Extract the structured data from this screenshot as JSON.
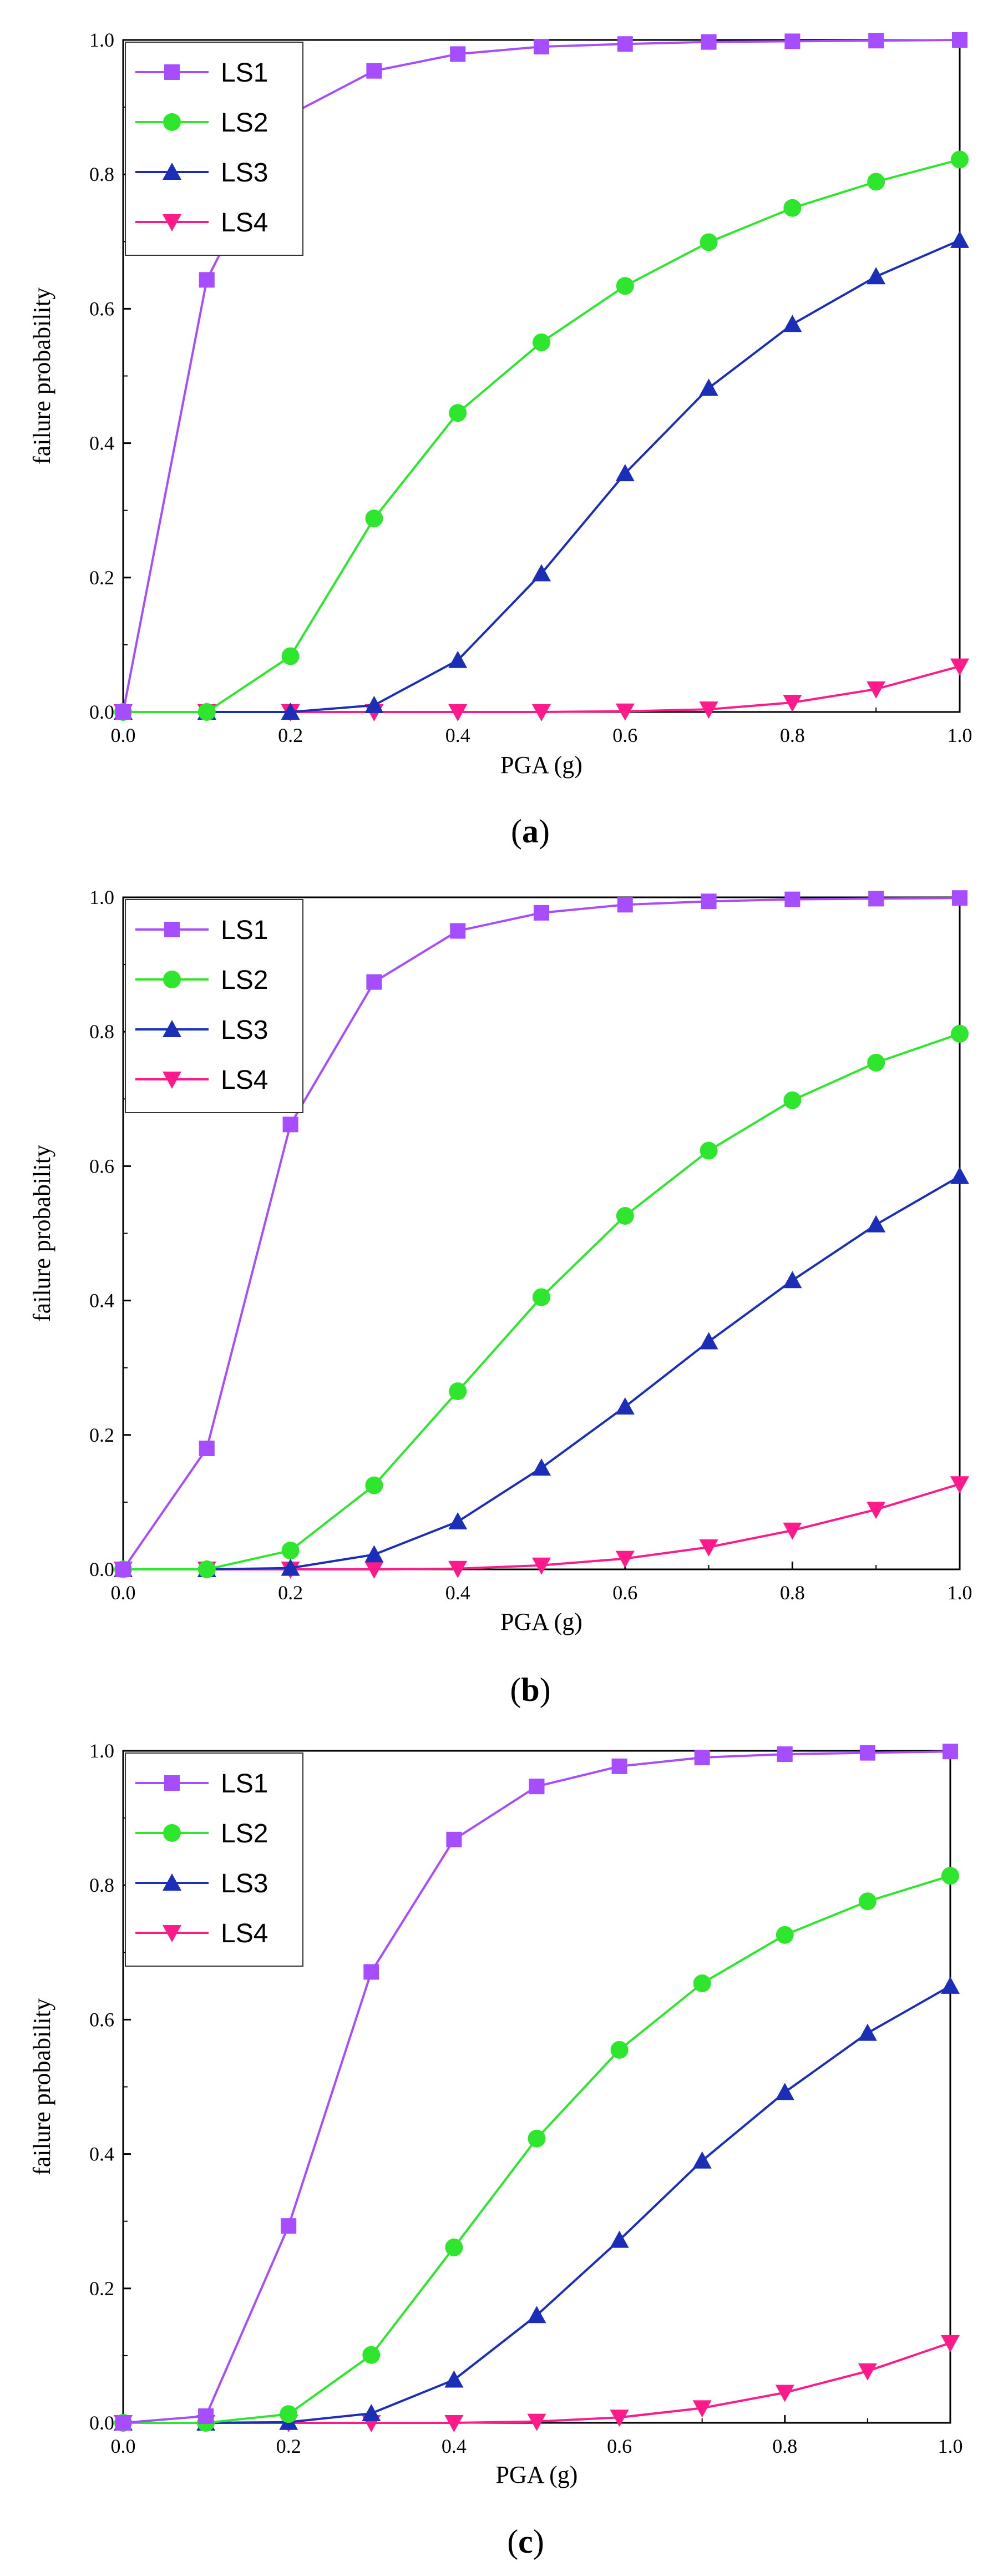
{
  "figure": {
    "panels": [
      {
        "caption_open": "(",
        "caption_letter": "a",
        "caption_close": ")"
      },
      {
        "caption_open": "(",
        "caption_letter": "b",
        "caption_close": ")"
      },
      {
        "caption_open": "(",
        "caption_letter": "c",
        "caption_close": ")"
      }
    ]
  },
  "chart_data": [
    {
      "type": "line",
      "panel": "a",
      "xlabel": "PGA (g)",
      "ylabel": "failure probability",
      "xlim": [
        0,
        1
      ],
      "ylim": [
        0,
        1
      ],
      "x_ticks": [
        "0.0",
        "0.2",
        "0.4",
        "0.6",
        "0.8",
        "1.0"
      ],
      "y_ticks": [
        "0.0",
        "0.2",
        "0.4",
        "0.6",
        "0.8",
        "1.0"
      ],
      "x": [
        0.0,
        0.1,
        0.2,
        0.3,
        0.4,
        0.5,
        0.6,
        0.7,
        0.8,
        0.9,
        1.0
      ],
      "legend_position": "top-left",
      "series": [
        {
          "name": "LS1",
          "color": "#a64dff",
          "marker": "square",
          "values": [
            0.0,
            0.643,
            0.889,
            0.954,
            0.979,
            0.99,
            0.994,
            0.997,
            0.998,
            0.999,
            1.0
          ]
        },
        {
          "name": "LS2",
          "color": "#2ee62e",
          "marker": "circle",
          "values": [
            0.0,
            0.0,
            0.083,
            0.288,
            0.445,
            0.55,
            0.634,
            0.699,
            0.75,
            0.789,
            0.822
          ]
        },
        {
          "name": "LS3",
          "color": "#1a2eb8",
          "marker": "triangle-up",
          "values": [
            0.0,
            0.0,
            0.0,
            0.01,
            0.077,
            0.206,
            0.355,
            0.482,
            0.577,
            0.648,
            0.702
          ]
        },
        {
          "name": "LS4",
          "color": "#ff1a8c",
          "marker": "triangle-down",
          "values": [
            0.0,
            0.0,
            0.0,
            0.0,
            0.0,
            0.0,
            0.001,
            0.004,
            0.014,
            0.034,
            0.068
          ]
        }
      ]
    },
    {
      "type": "line",
      "panel": "b",
      "xlabel": "PGA (g)",
      "ylabel": "failure probability",
      "xlim": [
        0,
        1
      ],
      "ylim": [
        0,
        1
      ],
      "x_ticks": [
        "0.0",
        "0.2",
        "0.4",
        "0.6",
        "0.8",
        "1.0"
      ],
      "y_ticks": [
        "0.0",
        "0.2",
        "0.4",
        "0.6",
        "0.8",
        "1.0"
      ],
      "x": [
        0.0,
        0.1,
        0.2,
        0.3,
        0.4,
        0.5,
        0.6,
        0.7,
        0.8,
        0.9,
        1.0
      ],
      "legend_position": "top-left",
      "series": [
        {
          "name": "LS1",
          "color": "#a64dff",
          "marker": "square",
          "values": [
            0.0,
            0.18,
            0.662,
            0.874,
            0.95,
            0.977,
            0.989,
            0.994,
            0.997,
            0.998,
            0.999
          ]
        },
        {
          "name": "LS2",
          "color": "#2ee62e",
          "marker": "circle",
          "values": [
            0.0,
            0.0,
            0.028,
            0.125,
            0.265,
            0.405,
            0.526,
            0.623,
            0.698,
            0.754,
            0.797
          ]
        },
        {
          "name": "LS3",
          "color": "#1a2eb8",
          "marker": "triangle-up",
          "values": [
            0.0,
            0.0,
            0.002,
            0.022,
            0.071,
            0.151,
            0.242,
            0.339,
            0.43,
            0.513,
            0.585
          ]
        },
        {
          "name": "LS4",
          "color": "#ff1a8c",
          "marker": "triangle-down",
          "values": [
            0.0,
            0.0,
            0.0,
            0.0,
            0.001,
            0.006,
            0.016,
            0.033,
            0.058,
            0.089,
            0.127
          ]
        }
      ]
    },
    {
      "type": "line",
      "panel": "c",
      "xlabel": "PGA (g)",
      "ylabel": "failure probability",
      "xlim": [
        0,
        1
      ],
      "ylim": [
        0,
        1
      ],
      "x_ticks": [
        "0.0",
        "0.2",
        "0.4",
        "0.6",
        "0.8",
        "1.0"
      ],
      "y_ticks": [
        "0.0",
        "0.2",
        "0.4",
        "0.6",
        "0.8",
        "1.0"
      ],
      "x": [
        0.0,
        0.1,
        0.2,
        0.3,
        0.4,
        0.5,
        0.6,
        0.7,
        0.8,
        0.9,
        1.0
      ],
      "legend_position": "top-left",
      "series": [
        {
          "name": "LS1",
          "color": "#a64dff",
          "marker": "square",
          "values": [
            0.0,
            0.01,
            0.293,
            0.671,
            0.868,
            0.947,
            0.977,
            0.99,
            0.995,
            0.997,
            0.999
          ]
        },
        {
          "name": "LS2",
          "color": "#2ee62e",
          "marker": "circle",
          "values": [
            0.0,
            0.0,
            0.013,
            0.101,
            0.261,
            0.423,
            0.555,
            0.654,
            0.726,
            0.776,
            0.814
          ]
        },
        {
          "name": "LS3",
          "color": "#1a2eb8",
          "marker": "triangle-up",
          "values": [
            0.0,
            0.0,
            0.001,
            0.014,
            0.064,
            0.16,
            0.272,
            0.39,
            0.492,
            0.58,
            0.65
          ]
        },
        {
          "name": "LS4",
          "color": "#ff1a8c",
          "marker": "triangle-down",
          "values": [
            0.0,
            0.0,
            0.0,
            0.0,
            0.0,
            0.002,
            0.008,
            0.022,
            0.045,
            0.077,
            0.119
          ]
        }
      ]
    }
  ]
}
